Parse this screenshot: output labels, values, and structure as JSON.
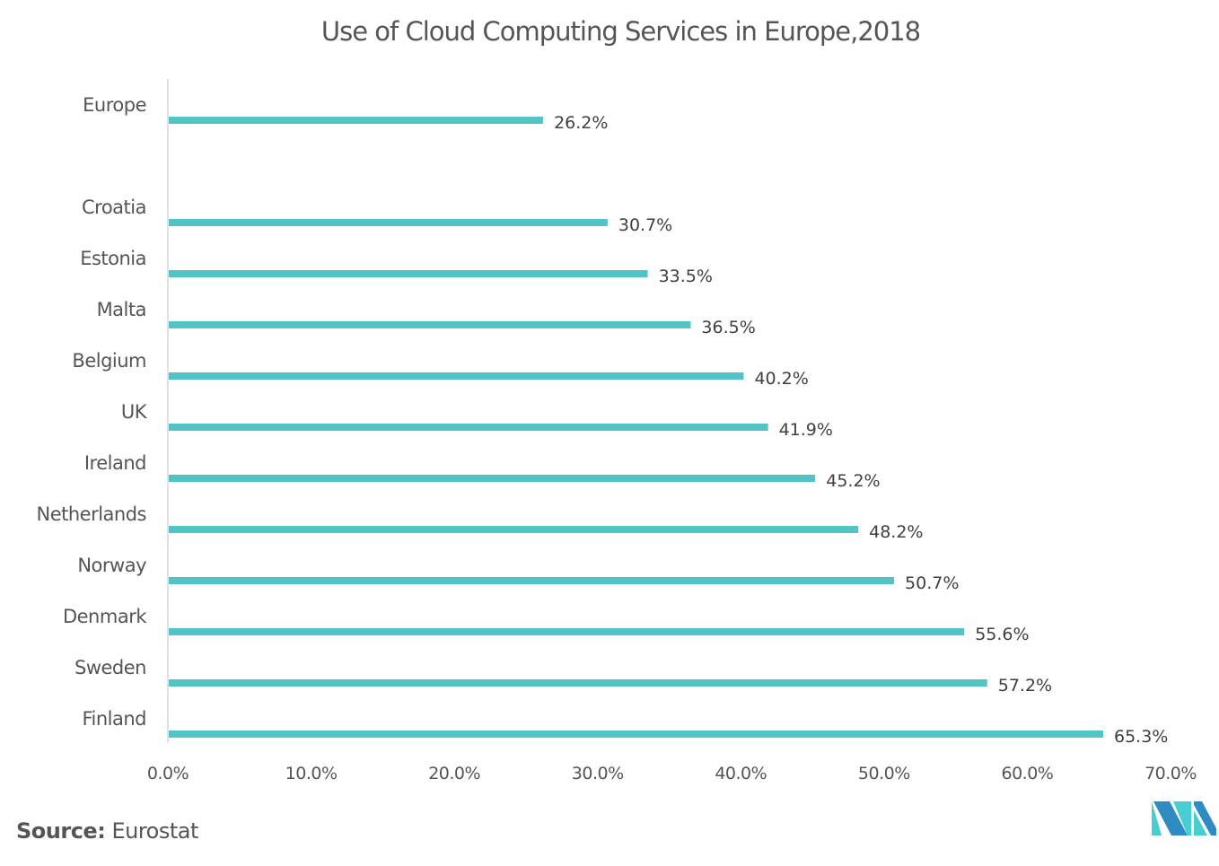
{
  "chart_data": {
    "type": "bar",
    "orientation": "horizontal",
    "title": "Use of Cloud Computing Services in Europe,2018",
    "xlabel": "",
    "ylabel": "",
    "xlim": [
      0,
      70
    ],
    "x_ticks": [
      "0.0%",
      "10.0%",
      "20.0%",
      "30.0%",
      "40.0%",
      "50.0%",
      "60.0%",
      "70.0%"
    ],
    "grid": false,
    "legend": null,
    "categories": [
      "Europe",
      "Croatia",
      "Estonia",
      "Malta",
      "Belgium",
      "UK",
      "Ireland",
      "Netherlands",
      "Norway",
      "Denmark",
      "Sweden",
      "Finland"
    ],
    "values": [
      26.2,
      30.7,
      33.5,
      36.5,
      40.2,
      41.9,
      45.2,
      48.2,
      50.7,
      55.6,
      57.2,
      65.3
    ],
    "data_labels": [
      "26.2%",
      "30.7%",
      "33.5%",
      "36.5%",
      "40.2%",
      "41.9%",
      "45.2%",
      "48.2%",
      "50.7%",
      "55.6%",
      "57.2%",
      "65.3%"
    ],
    "bar_color": "#53c4c6"
  },
  "source": {
    "label": "Source:",
    "value": "Eurostat"
  },
  "logo": {
    "name": "Mordor Intelligence logo",
    "colors": [
      "#2e8cc2",
      "#48cdd0"
    ]
  }
}
